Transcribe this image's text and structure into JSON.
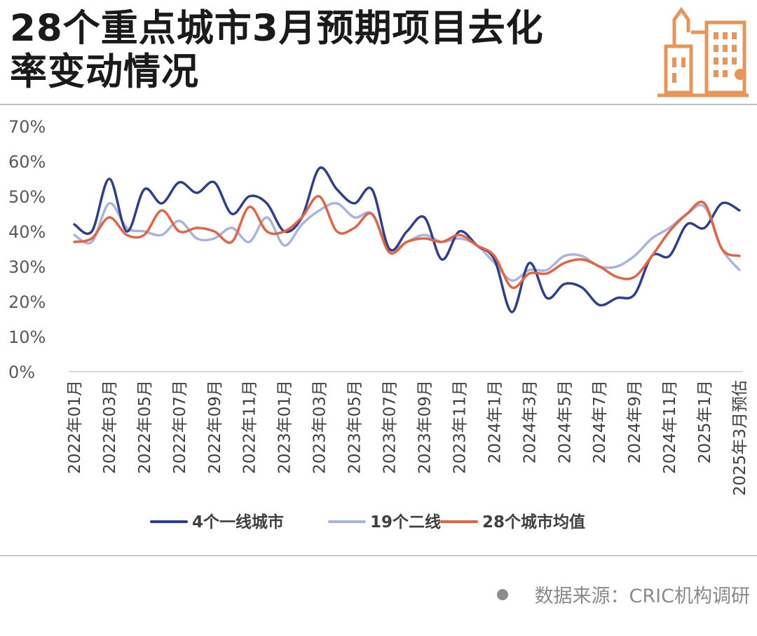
{
  "header": {
    "title": "28个重点城市3月预期项目去化\n率变动情况"
  },
  "footer": {
    "source": "数据来源：CRIC机构调研"
  },
  "icons": {
    "logo": "city-buildings-icon",
    "logo_color": "#e8955a"
  },
  "chart_data": {
    "type": "line",
    "title": "28个重点城市3月预期项目去化率变动情况",
    "xlabel": "",
    "ylabel": "",
    "ylim": [
      0,
      70
    ],
    "yticks": [
      "0%",
      "10%",
      "20%",
      "30%",
      "40%",
      "50%",
      "60%",
      "70%"
    ],
    "grid": false,
    "legend_position": "bottom",
    "x": [
      "2022年01月",
      "2022年02月",
      "2022年03月",
      "2022年04月",
      "2022年05月",
      "2022年06月",
      "2022年07月",
      "2022年08月",
      "2022年09月",
      "2022年10月",
      "2022年11月",
      "2022年12月",
      "2023年01月",
      "2023年02月",
      "2023年03月",
      "2023年04月",
      "2023年05月",
      "2023年06月",
      "2023年07月",
      "2023年08月",
      "2023年09月",
      "2023年10月",
      "2023年11月",
      "2023年12月",
      "2024年1月",
      "2024年2月",
      "2024年3月",
      "2024年4月",
      "2024年5月",
      "2024年6月",
      "2024年7月",
      "2024年8月",
      "2024年9月",
      "2024年10月",
      "2024年11月",
      "2024年12月",
      "2025年1月",
      "2025年2月",
      "2025年3月预估"
    ],
    "x_tick_labels": [
      "2022年01月",
      "2022年03月",
      "2022年05月",
      "2022年07月",
      "2022年09月",
      "2022年11月",
      "2023年01月",
      "2023年03月",
      "2023年05月",
      "2023年07月",
      "2023年09月",
      "2023年11月",
      "2024年1月",
      "2024年3月",
      "2024年5月",
      "2024年7月",
      "2024年9月",
      "2024年11月",
      "2025年1月",
      "2025年3月预估"
    ],
    "series": [
      {
        "name": "4个一线城市",
        "color": "#2e3f8f",
        "values": [
          42,
          40,
          55,
          40,
          52,
          48,
          54,
          51,
          54,
          45,
          50,
          48,
          40,
          44,
          58,
          52,
          48,
          52,
          35,
          40,
          44,
          32,
          40,
          36,
          32,
          17,
          31,
          21,
          25,
          24,
          19,
          21,
          22,
          33,
          33,
          42,
          41,
          48,
          46
        ]
      },
      {
        "name": "19个二线",
        "color": "#a9b4dd",
        "values": [
          39,
          37,
          48,
          41,
          40,
          39,
          43,
          38,
          38,
          41,
          37,
          44,
          36,
          42,
          46,
          48,
          44,
          45,
          35,
          37,
          39,
          37,
          38,
          36,
          31,
          26,
          29,
          29,
          33,
          33,
          30,
          30,
          33,
          38,
          41,
          45,
          47,
          35,
          29
        ]
      },
      {
        "name": "28个城市均值",
        "color": "#e36442",
        "values": [
          37,
          38,
          44,
          39,
          39,
          46,
          40,
          41,
          40,
          37,
          47,
          40,
          40,
          44,
          50,
          40,
          41,
          45,
          34,
          37,
          38,
          37,
          39,
          36,
          33,
          24,
          28,
          28,
          31,
          32,
          30,
          27,
          27,
          33,
          40,
          45,
          48,
          35,
          33
        ]
      }
    ]
  }
}
